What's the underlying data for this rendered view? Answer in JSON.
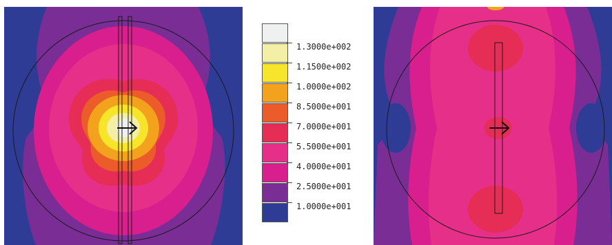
{
  "colors": {
    "background_blue": "#2E3C96",
    "outer_purple": "#7A2E95",
    "magenta": "#D91E8E",
    "hot_pink": "#E62F89",
    "red": "#E62D55",
    "orange_red": "#EC5B2A",
    "orange": "#F3A21D",
    "yellow": "#F7E52C",
    "pale_yellow": "#F3EFA6",
    "near_white": "#EEF1EF",
    "outline": "#1a1a1a"
  },
  "legend": {
    "swatches": [
      "#EEF1EF",
      "#F3EFA6",
      "#F7E52C",
      "#F3A21D",
      "#EC5B2A",
      "#E62D55",
      "#E62F89",
      "#D91E8E",
      "#7A2E95",
      "#2E3C96"
    ],
    "labels": [
      "1.3000e+002",
      "1.1500e+002",
      "1.0000e+002",
      "8.5000e+001",
      "7.0000e+001",
      "5.5000e+001",
      "4.0000e+001",
      "2.5000e+001",
      "1.0000e+001"
    ]
  },
  "panels": [
    {
      "name": "left-field-plot",
      "arrow_icon": "right-arrow-icon"
    },
    {
      "name": "right-field-plot",
      "arrow_icon": "right-arrow-icon"
    }
  ]
}
